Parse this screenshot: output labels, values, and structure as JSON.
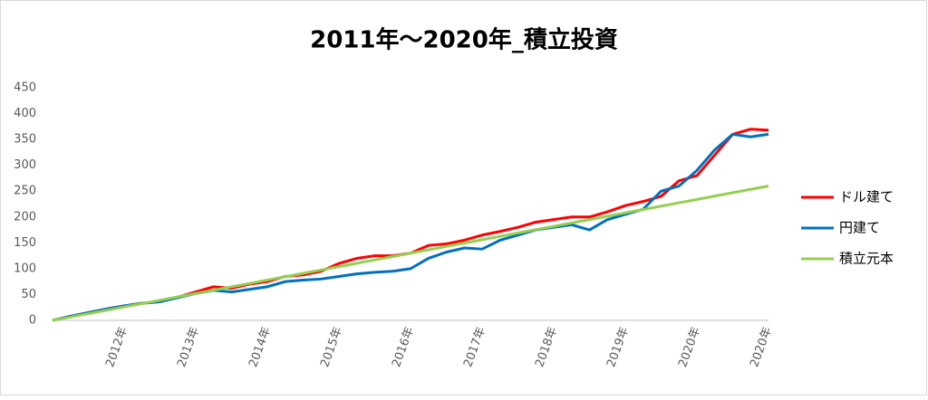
{
  "chart_data": {
    "type": "line",
    "title": "2011年～2020年_積立投資",
    "categories": [
      null,
      null,
      null,
      null,
      "2012年",
      null,
      null,
      null,
      "2013年",
      null,
      null,
      null,
      "2014年",
      null,
      null,
      null,
      "2015年",
      null,
      null,
      null,
      "2016年",
      null,
      null,
      null,
      "2017年",
      null,
      null,
      null,
      "2018年",
      null,
      null,
      null,
      "2019年",
      null,
      null,
      null,
      "2020年",
      null,
      null,
      null,
      "2020年"
    ],
    "series": [
      {
        "name": "ドル建て",
        "color": "#ff0000",
        "values": [
          0,
          8,
          15,
          22,
          28,
          33,
          36,
          45,
          55,
          65,
          62,
          70,
          75,
          85,
          88,
          95,
          110,
          120,
          125,
          125,
          130,
          145,
          148,
          155,
          165,
          172,
          180,
          190,
          195,
          200,
          200,
          210,
          222,
          230,
          240,
          270,
          280,
          320,
          360,
          370,
          368
        ]
      },
      {
        "name": "円建て",
        "color": "#0070c0",
        "values": [
          0,
          8,
          15,
          22,
          28,
          33,
          36,
          44,
          52,
          58,
          55,
          60,
          65,
          75,
          78,
          80,
          85,
          90,
          93,
          95,
          100,
          120,
          132,
          140,
          138,
          155,
          165,
          175,
          180,
          185,
          175,
          195,
          205,
          215,
          250,
          260,
          290,
          330,
          360,
          355,
          360
        ]
      },
      {
        "name": "積立元本",
        "color": "#92d050",
        "values": [
          0,
          6.5,
          13,
          19.5,
          26,
          32.5,
          39,
          45.5,
          52,
          58.5,
          65,
          71.5,
          78,
          84.5,
          91,
          97.5,
          104,
          110.5,
          117,
          123.5,
          130,
          136.5,
          143,
          149.5,
          156,
          162.5,
          169,
          175.5,
          182,
          188.5,
          195,
          201.5,
          208,
          214.5,
          221,
          227.5,
          234,
          240.5,
          247,
          253.5,
          260
        ]
      }
    ],
    "ylim": [
      0,
      450
    ],
    "yticks": [
      0,
      50,
      100,
      150,
      200,
      250,
      300,
      350,
      400,
      450
    ],
    "grid": false,
    "legend": "right"
  }
}
